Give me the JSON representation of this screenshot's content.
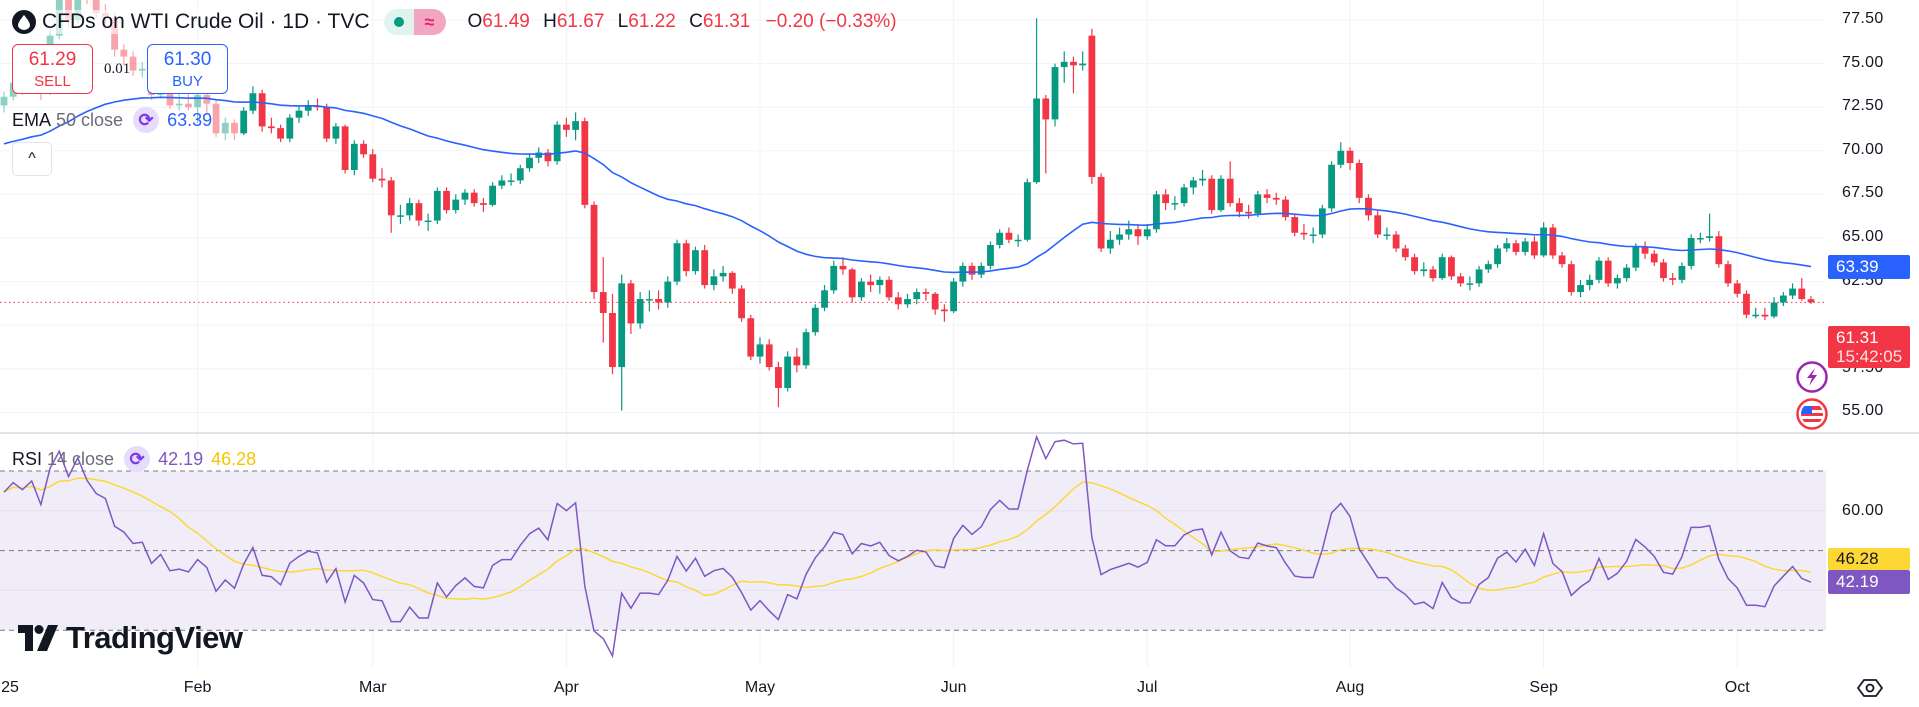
{
  "header": {
    "title": "CFDs on WTI Crude Oil · 1D · TVC",
    "toggle_icon": "approx-equal-icon",
    "toggle_glyph": "≈",
    "ohlc": {
      "o_label": "O",
      "o": "61.49",
      "h_label": "H",
      "h": "61.67",
      "l_label": "L",
      "l": "61.22",
      "c_label": "C",
      "c": "61.31",
      "change": "−0.20 (−0.33%)"
    }
  },
  "trade": {
    "sell_price": "61.29",
    "sell_label": "SELL",
    "spread": "0.01",
    "buy_price": "61.30",
    "buy_label": "BUY"
  },
  "ema_legend": {
    "name": "EMA",
    "params": "50 close",
    "value": "63.39"
  },
  "rsi_legend": {
    "name": "RSI",
    "params": "14 close",
    "value": "42.19",
    "ma_value": "46.28"
  },
  "collapse_glyph": "^",
  "price_axis": [
    "77.50",
    "75.00",
    "72.50",
    "70.00",
    "67.50",
    "65.00",
    "62.50",
    "57.50",
    "55.00"
  ],
  "rsi_axis": [
    "60.00",
    "40.00"
  ],
  "tags": {
    "ema": "63.39",
    "last": "61.31",
    "countdown": "15:42:05",
    "rsi_ma": "46.28",
    "rsi": "42.19"
  },
  "time_axis": [
    "25",
    "Feb",
    "Mar",
    "Apr",
    "May",
    "Jun",
    "Jul",
    "Aug",
    "Sep",
    "Oct"
  ],
  "logo": "TradingView",
  "colors": {
    "up": "#089981",
    "down": "#f23645",
    "ema": "#2962ff",
    "rsi": "#7e57c2",
    "rsi_ma": "#fdd835",
    "rsi_band": "#f0edf9",
    "grid": "#f0f3fa"
  },
  "chart_data": {
    "type": "candlestick",
    "symbol": "CFDs on WTI Crude Oil",
    "interval": "1D",
    "ylim": [
      54,
      78.6
    ],
    "y_ticks": [
      55,
      57.5,
      60,
      62.5,
      65,
      67.5,
      70,
      72.5,
      75,
      77.5
    ],
    "x_ticks": [
      "25",
      "Feb",
      "Mar",
      "Apr",
      "May",
      "Jun",
      "Jul",
      "Aug",
      "Sep",
      "Oct"
    ],
    "last_price": 61.31,
    "ema50_start": 70.4,
    "ema50_last": 63.39,
    "rsi_period": 14,
    "rsi_levels": [
      70,
      50,
      30
    ],
    "rsi_last": 42.19,
    "rsi_ma_last": 46.28,
    "ohlc": [
      [
        72.6,
        73.4,
        72.2,
        73.1
      ],
      [
        73.1,
        74.1,
        72.9,
        73.9
      ],
      [
        73.9,
        74.4,
        73.2,
        73.6
      ],
      [
        73.6,
        74.8,
        73.3,
        74.3
      ],
      [
        74.3,
        74.6,
        72.9,
        73.3
      ],
      [
        73.3,
        77.0,
        73.2,
        76.6
      ],
      [
        76.6,
        79.2,
        76.4,
        78.8
      ],
      [
        78.8,
        79.4,
        77.1,
        77.5
      ],
      [
        77.5,
        80.2,
        77.3,
        80.0
      ],
      [
        80.0,
        80.6,
        78.4,
        78.7
      ],
      [
        78.7,
        79.0,
        77.6,
        77.9
      ],
      [
        77.9,
        78.4,
        77.0,
        77.6
      ],
      [
        77.6,
        77.9,
        75.4,
        75.8
      ],
      [
        75.8,
        76.1,
        74.9,
        75.4
      ],
      [
        75.4,
        75.7,
        74.3,
        74.6
      ],
      [
        74.6,
        75.1,
        74.2,
        74.7
      ],
      [
        74.7,
        74.9,
        72.9,
        73.2
      ],
      [
        73.2,
        74.2,
        73.0,
        73.8
      ],
      [
        73.8,
        74.0,
        72.4,
        72.6
      ],
      [
        72.6,
        73.6,
        72.3,
        72.7
      ],
      [
        72.7,
        73.9,
        72.3,
        72.5
      ],
      [
        72.5,
        73.9,
        71.6,
        73.2
      ],
      [
        73.2,
        73.4,
        72.1,
        72.7
      ],
      [
        72.7,
        72.9,
        70.8,
        71.0
      ],
      [
        71.0,
        71.9,
        70.6,
        71.6
      ],
      [
        71.6,
        71.8,
        70.6,
        71.0
      ],
      [
        71.0,
        72.5,
        70.9,
        72.3
      ],
      [
        72.3,
        73.7,
        72.1,
        73.3
      ],
      [
        73.3,
        73.5,
        71.1,
        71.4
      ],
      [
        71.4,
        71.9,
        71.0,
        71.3
      ],
      [
        71.3,
        71.5,
        70.5,
        70.7
      ],
      [
        70.7,
        72.1,
        70.5,
        71.9
      ],
      [
        71.9,
        72.6,
        71.6,
        72.3
      ],
      [
        72.3,
        72.9,
        72.0,
        72.6
      ],
      [
        72.6,
        73.0,
        72.3,
        72.5
      ],
      [
        72.5,
        72.7,
        70.5,
        70.7
      ],
      [
        70.7,
        71.6,
        70.4,
        71.4
      ],
      [
        71.4,
        71.5,
        68.7,
        68.9
      ],
      [
        68.9,
        70.6,
        68.6,
        70.4
      ],
      [
        70.4,
        70.6,
        69.6,
        69.8
      ],
      [
        69.8,
        70.1,
        68.2,
        68.4
      ],
      [
        68.4,
        69.0,
        67.9,
        68.3
      ],
      [
        68.3,
        68.5,
        65.3,
        66.3
      ],
      [
        66.3,
        66.9,
        65.8,
        66.3
      ],
      [
        66.3,
        67.3,
        66.0,
        67.0
      ],
      [
        67.0,
        67.2,
        65.7,
        66.0
      ],
      [
        66.0,
        66.4,
        65.4,
        66.0
      ],
      [
        66.0,
        67.9,
        65.8,
        67.7
      ],
      [
        67.7,
        67.9,
        66.4,
        66.6
      ],
      [
        66.6,
        67.5,
        66.4,
        67.2
      ],
      [
        67.2,
        67.8,
        66.9,
        67.6
      ],
      [
        67.6,
        67.8,
        66.8,
        67.0
      ],
      [
        67.0,
        67.3,
        66.5,
        66.9
      ],
      [
        66.9,
        68.2,
        66.8,
        68.0
      ],
      [
        68.0,
        68.6,
        67.8,
        68.3
      ],
      [
        68.3,
        68.7,
        68.0,
        68.3
      ],
      [
        68.3,
        69.2,
        68.1,
        69.0
      ],
      [
        69.0,
        69.8,
        68.8,
        69.6
      ],
      [
        69.6,
        70.2,
        69.3,
        69.9
      ],
      [
        69.9,
        70.1,
        69.1,
        69.4
      ],
      [
        69.4,
        71.7,
        69.2,
        71.5
      ],
      [
        71.5,
        71.9,
        70.8,
        71.2
      ],
      [
        71.2,
        72.2,
        70.6,
        71.7
      ],
      [
        71.7,
        71.9,
        66.7,
        66.9
      ],
      [
        66.9,
        67.1,
        61.5,
        61.9
      ],
      [
        61.9,
        63.9,
        59.0,
        60.7
      ],
      [
        60.7,
        61.8,
        57.2,
        57.6
      ],
      [
        57.6,
        62.9,
        55.1,
        62.4
      ],
      [
        62.4,
        62.6,
        59.5,
        60.1
      ],
      [
        60.1,
        61.9,
        59.8,
        61.5
      ],
      [
        61.5,
        62.0,
        60.8,
        61.5
      ],
      [
        61.5,
        62.0,
        60.9,
        61.3
      ],
      [
        61.3,
        62.8,
        61.0,
        62.5
      ],
      [
        62.5,
        64.9,
        62.3,
        64.7
      ],
      [
        64.7,
        64.9,
        62.8,
        63.1
      ],
      [
        63.1,
        64.5,
        62.9,
        64.3
      ],
      [
        64.3,
        64.6,
        62.1,
        62.3
      ],
      [
        62.3,
        63.2,
        62.0,
        62.8
      ],
      [
        62.8,
        63.4,
        62.5,
        63.0
      ],
      [
        63.0,
        63.1,
        61.8,
        62.1
      ],
      [
        62.1,
        62.3,
        60.2,
        60.4
      ],
      [
        60.4,
        60.6,
        58.0,
        58.2
      ],
      [
        58.2,
        59.3,
        57.8,
        58.9
      ],
      [
        58.9,
        59.2,
        57.4,
        57.6
      ],
      [
        57.6,
        57.9,
        55.3,
        56.4
      ],
      [
        56.4,
        58.5,
        56.2,
        58.2
      ],
      [
        58.2,
        58.7,
        57.3,
        57.7
      ],
      [
        57.7,
        59.8,
        57.5,
        59.6
      ],
      [
        59.6,
        61.2,
        59.4,
        61.0
      ],
      [
        61.0,
        62.3,
        60.8,
        62.0
      ],
      [
        62.0,
        63.7,
        61.8,
        63.4
      ],
      [
        63.4,
        63.9,
        62.9,
        63.2
      ],
      [
        63.2,
        63.3,
        61.3,
        61.6
      ],
      [
        61.6,
        62.7,
        61.4,
        62.5
      ],
      [
        62.5,
        62.9,
        61.9,
        62.3
      ],
      [
        62.3,
        62.8,
        61.8,
        62.6
      ],
      [
        62.6,
        62.8,
        61.4,
        61.6
      ],
      [
        61.6,
        61.9,
        60.9,
        61.2
      ],
      [
        61.2,
        61.8,
        61.0,
        61.5
      ],
      [
        61.5,
        62.1,
        61.2,
        61.9
      ],
      [
        61.9,
        62.1,
        61.4,
        61.8
      ],
      [
        61.8,
        61.9,
        60.6,
        60.9
      ],
      [
        60.9,
        61.2,
        60.2,
        60.8
      ],
      [
        60.8,
        62.7,
        60.7,
        62.5
      ],
      [
        62.5,
        63.6,
        62.2,
        63.4
      ],
      [
        63.4,
        63.6,
        62.6,
        62.9
      ],
      [
        62.9,
        63.6,
        62.7,
        63.4
      ],
      [
        63.4,
        64.8,
        63.2,
        64.6
      ],
      [
        64.6,
        65.5,
        64.4,
        65.3
      ],
      [
        65.3,
        65.6,
        64.7,
        64.9
      ],
      [
        64.9,
        65.2,
        64.5,
        64.9
      ],
      [
        64.9,
        68.4,
        64.8,
        68.2
      ],
      [
        68.2,
        77.6,
        68.1,
        73.0
      ],
      [
        73.0,
        73.2,
        68.7,
        71.8
      ],
      [
        71.8,
        75.0,
        71.4,
        74.8
      ],
      [
        74.8,
        75.7,
        73.9,
        75.1
      ],
      [
        75.1,
        75.4,
        73.3,
        74.9
      ],
      [
        74.9,
        75.7,
        74.6,
        75.0
      ],
      [
        76.6,
        77.0,
        68.1,
        68.5
      ],
      [
        68.5,
        68.7,
        64.2,
        64.4
      ],
      [
        64.4,
        65.4,
        64.1,
        64.9
      ],
      [
        64.9,
        65.6,
        64.6,
        65.2
      ],
      [
        65.2,
        66.0,
        64.9,
        65.5
      ],
      [
        65.5,
        65.8,
        64.6,
        65.1
      ],
      [
        65.1,
        65.8,
        64.9,
        65.5
      ],
      [
        65.5,
        67.7,
        65.3,
        67.5
      ],
      [
        67.5,
        67.8,
        66.6,
        67.0
      ],
      [
        67.0,
        67.4,
        66.6,
        67.0
      ],
      [
        67.0,
        68.1,
        66.8,
        67.9
      ],
      [
        67.9,
        68.5,
        67.5,
        68.3
      ],
      [
        68.3,
        68.9,
        68.0,
        68.4
      ],
      [
        68.4,
        68.6,
        66.4,
        66.6
      ],
      [
        66.6,
        68.6,
        66.5,
        68.4
      ],
      [
        68.4,
        69.4,
        66.8,
        67.0
      ],
      [
        67.0,
        67.3,
        66.2,
        66.5
      ],
      [
        66.5,
        66.9,
        66.1,
        66.4
      ],
      [
        66.4,
        67.7,
        66.2,
        67.5
      ],
      [
        67.5,
        67.8,
        67.0,
        67.3
      ],
      [
        67.3,
        67.6,
        66.9,
        67.2
      ],
      [
        67.2,
        67.4,
        66.0,
        66.2
      ],
      [
        66.2,
        66.4,
        65.1,
        65.3
      ],
      [
        65.3,
        65.8,
        64.9,
        65.2
      ],
      [
        65.2,
        65.6,
        64.7,
        65.2
      ],
      [
        65.2,
        66.9,
        65.0,
        66.7
      ],
      [
        66.7,
        69.4,
        66.5,
        69.2
      ],
      [
        69.2,
        70.5,
        69.0,
        70.0
      ],
      [
        70.0,
        70.2,
        68.9,
        69.3
      ],
      [
        69.3,
        69.5,
        67.0,
        67.3
      ],
      [
        67.3,
        67.5,
        66.0,
        66.3
      ],
      [
        66.3,
        66.6,
        65.0,
        65.2
      ],
      [
        65.2,
        65.6,
        64.9,
        65.2
      ],
      [
        65.2,
        65.4,
        64.2,
        64.4
      ],
      [
        64.4,
        64.6,
        63.7,
        63.9
      ],
      [
        63.9,
        64.1,
        62.9,
        63.1
      ],
      [
        63.1,
        63.6,
        62.8,
        63.2
      ],
      [
        63.2,
        63.4,
        62.5,
        62.7
      ],
      [
        62.7,
        64.1,
        62.6,
        63.9
      ],
      [
        63.9,
        64.0,
        62.6,
        62.8
      ],
      [
        62.8,
        63.0,
        62.2,
        62.4
      ],
      [
        62.4,
        62.8,
        62.0,
        62.4
      ],
      [
        62.4,
        63.4,
        62.2,
        63.2
      ],
      [
        63.2,
        63.7,
        63.0,
        63.5
      ],
      [
        63.5,
        64.6,
        63.3,
        64.4
      ],
      [
        64.4,
        65.0,
        64.2,
        64.7
      ],
      [
        64.7,
        64.9,
        64.0,
        64.2
      ],
      [
        64.2,
        65.0,
        64.0,
        64.8
      ],
      [
        64.8,
        65.1,
        63.8,
        64.0
      ],
      [
        64.0,
        65.9,
        63.9,
        65.6
      ],
      [
        65.6,
        65.8,
        63.8,
        64.0
      ],
      [
        64.0,
        64.2,
        63.3,
        63.5
      ],
      [
        63.5,
        63.7,
        61.7,
        61.9
      ],
      [
        61.9,
        62.6,
        61.6,
        62.3
      ],
      [
        62.3,
        62.9,
        62.0,
        62.6
      ],
      [
        62.6,
        63.9,
        62.4,
        63.7
      ],
      [
        63.7,
        63.9,
        62.2,
        62.4
      ],
      [
        62.4,
        62.9,
        62.1,
        62.7
      ],
      [
        62.7,
        63.5,
        62.5,
        63.3
      ],
      [
        63.3,
        64.7,
        63.1,
        64.5
      ],
      [
        64.5,
        64.8,
        63.8,
        64.1
      ],
      [
        64.1,
        64.3,
        63.4,
        63.6
      ],
      [
        63.6,
        63.8,
        62.5,
        62.7
      ],
      [
        62.7,
        63.0,
        62.3,
        62.6
      ],
      [
        62.6,
        63.6,
        62.4,
        63.4
      ],
      [
        63.4,
        65.2,
        63.2,
        65.0
      ],
      [
        65.0,
        65.3,
        64.7,
        65.0
      ],
      [
        65.0,
        66.4,
        64.8,
        65.1
      ],
      [
        65.1,
        65.4,
        63.3,
        63.5
      ],
      [
        63.5,
        63.7,
        62.2,
        62.4
      ],
      [
        62.4,
        62.6,
        61.6,
        61.8
      ],
      [
        61.8,
        62.0,
        60.4,
        60.6
      ],
      [
        60.6,
        61.0,
        60.4,
        60.6
      ],
      [
        60.6,
        61.0,
        60.3,
        60.5
      ],
      [
        60.5,
        61.6,
        60.4,
        61.3
      ],
      [
        61.3,
        61.9,
        61.1,
        61.7
      ],
      [
        61.7,
        62.4,
        61.5,
        62.1
      ],
      [
        62.1,
        62.7,
        61.4,
        61.5
      ],
      [
        61.49,
        61.67,
        61.22,
        61.31
      ]
    ]
  }
}
